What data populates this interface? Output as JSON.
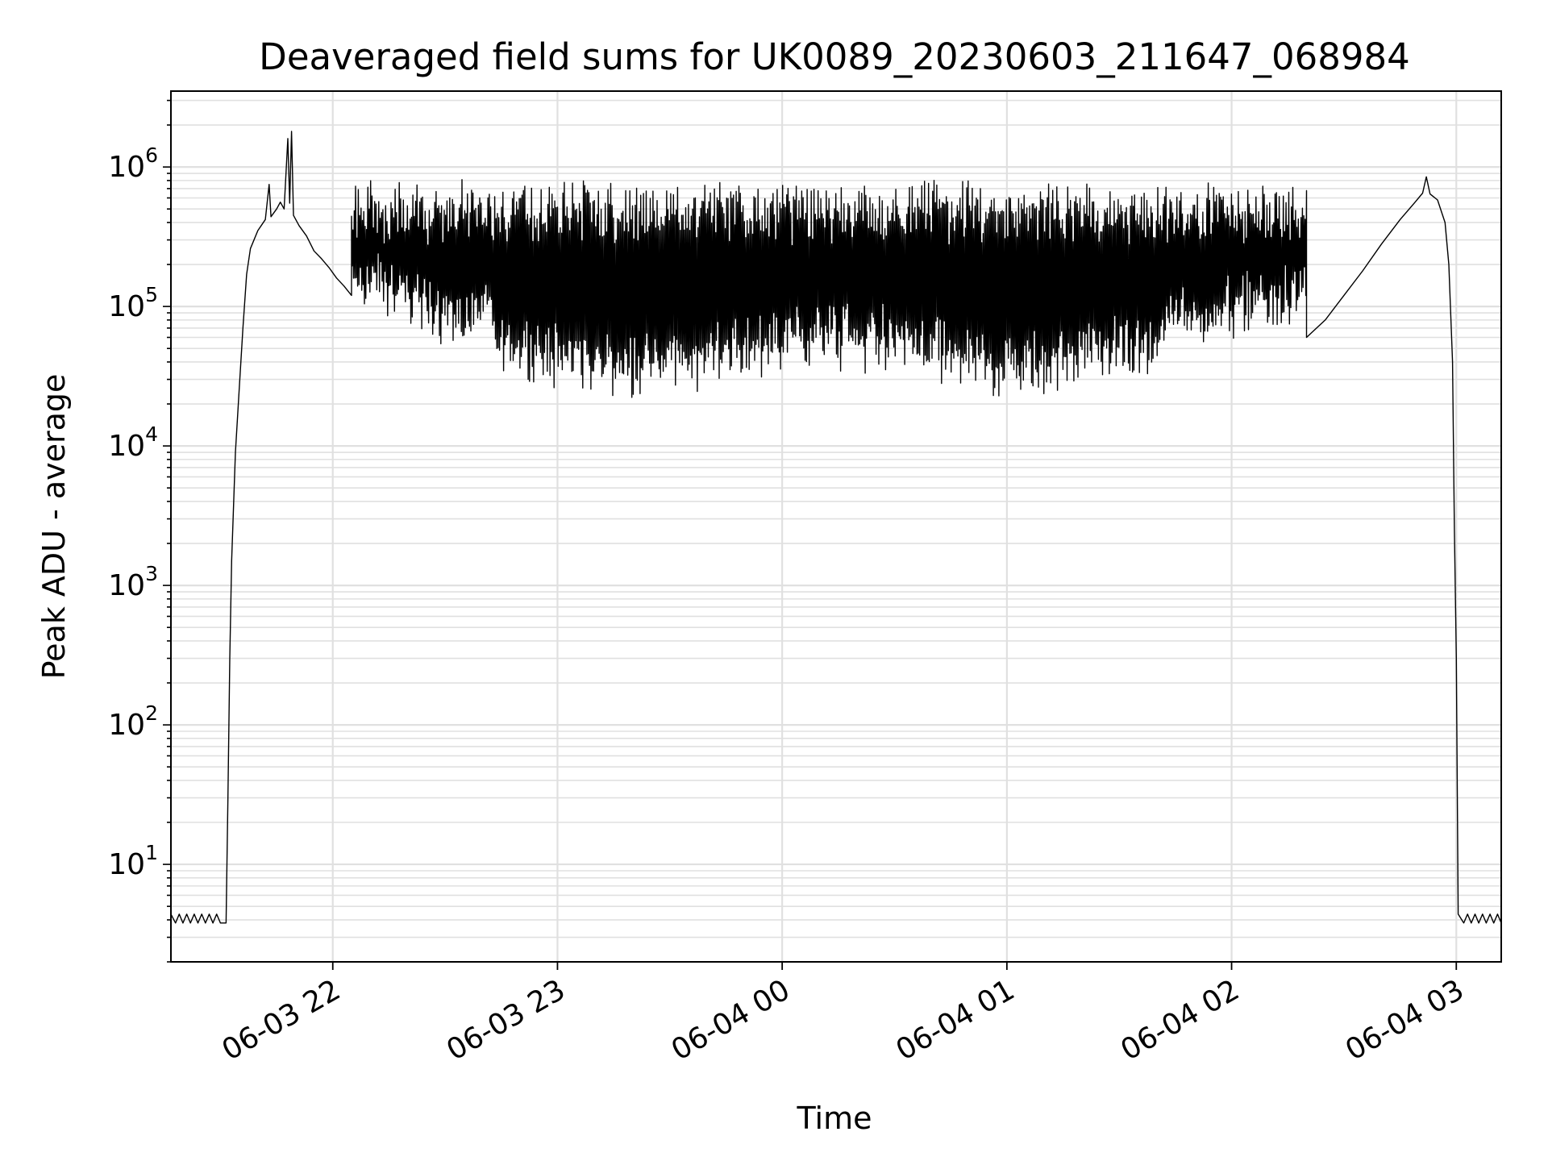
{
  "chart_data": {
    "type": "line",
    "title": "Deaveraged field sums for UK0089_20230603_211647_068984",
    "xlabel": "Time",
    "ylabel": "Peak ADU - average",
    "yscale": "log",
    "xlim": [
      "2023-06-03 21:16:47",
      "2023-06-04 03:12:00"
    ],
    "ylim": [
      2,
      3500000
    ],
    "grid": true,
    "line_color": "#000000",
    "grid_color": "#e0e0e0",
    "x_ticks": [
      {
        "t": "2023-06-03 22:00",
        "label": "06-03 22"
      },
      {
        "t": "2023-06-03 23:00",
        "label": "06-03 23"
      },
      {
        "t": "2023-06-04 00:00",
        "label": "06-04 00"
      },
      {
        "t": "2023-06-04 01:00",
        "label": "06-04 01"
      },
      {
        "t": "2023-06-04 02:00",
        "label": "06-04 02"
      },
      {
        "t": "2023-06-04 03:00",
        "label": "06-04 03"
      }
    ],
    "y_ticks": [
      {
        "value": 10,
        "base": "10",
        "exp": "1"
      },
      {
        "value": 100,
        "base": "10",
        "exp": "2"
      },
      {
        "value": 1000,
        "base": "10",
        "exp": "3"
      },
      {
        "value": 10000,
        "base": "10",
        "exp": "4"
      },
      {
        "value": 100000,
        "base": "10",
        "exp": "5"
      },
      {
        "value": 1000000,
        "base": "10",
        "exp": "6"
      }
    ],
    "series": [
      {
        "points": [
          [
            "2023-06-03 21:16:47",
            4.4
          ],
          [
            "2023-06-03 21:18:00",
            3.8
          ],
          [
            "2023-06-03 21:19:00",
            4.4
          ],
          [
            "2023-06-03 21:20:00",
            3.8
          ],
          [
            "2023-06-03 21:21:00",
            4.4
          ],
          [
            "2023-06-03 21:22:00",
            3.8
          ],
          [
            "2023-06-03 21:23:00",
            4.4
          ],
          [
            "2023-06-03 21:24:00",
            3.8
          ],
          [
            "2023-06-03 21:25:00",
            4.4
          ],
          [
            "2023-06-03 21:26:00",
            3.8
          ],
          [
            "2023-06-03 21:27:00",
            4.4
          ],
          [
            "2023-06-03 21:28:00",
            3.8
          ],
          [
            "2023-06-03 21:29:00",
            4.4
          ],
          [
            "2023-06-03 21:30:00",
            3.8
          ],
          [
            "2023-06-03 21:31:30",
            3.8
          ],
          [
            "2023-06-03 21:32:00",
            30
          ],
          [
            "2023-06-03 21:32:30",
            300
          ],
          [
            "2023-06-03 21:33:00",
            1500
          ],
          [
            "2023-06-03 21:34:00",
            9000
          ],
          [
            "2023-06-03 21:35:00",
            25000
          ],
          [
            "2023-06-03 21:36:00",
            70000
          ],
          [
            "2023-06-03 21:37:00",
            170000
          ],
          [
            "2023-06-03 21:38:00",
            260000
          ],
          [
            "2023-06-03 21:40:00",
            350000
          ],
          [
            "2023-06-03 21:42:00",
            420000
          ],
          [
            "2023-06-03 21:43:00",
            750000
          ],
          [
            "2023-06-03 21:43:30",
            440000
          ],
          [
            "2023-06-03 21:45:00",
            500000
          ],
          [
            "2023-06-03 21:46:00",
            560000
          ],
          [
            "2023-06-03 21:47:00",
            500000
          ],
          [
            "2023-06-03 21:48:00",
            1600000
          ],
          [
            "2023-06-03 21:48:30",
            550000
          ],
          [
            "2023-06-03 21:49:00",
            1800000
          ],
          [
            "2023-06-03 21:49:30",
            450000
          ],
          [
            "2023-06-03 21:51:00",
            380000
          ],
          [
            "2023-06-03 21:53:00",
            320000
          ],
          [
            "2023-06-03 21:55:00",
            250000
          ],
          [
            "2023-06-03 21:57:00",
            220000
          ],
          [
            "2023-06-03 21:59:00",
            190000
          ],
          [
            "2023-06-03 22:01:00",
            160000
          ],
          [
            "2023-06-03 22:03:00",
            140000
          ],
          [
            "2023-06-03 22:05:00",
            120000
          ],
          [
            "2023-06-04 02:20:00",
            60000
          ],
          [
            "2023-06-04 02:25:00",
            80000
          ],
          [
            "2023-06-04 02:30:00",
            120000
          ],
          [
            "2023-06-04 02:35:00",
            180000
          ],
          [
            "2023-06-04 02:40:00",
            280000
          ],
          [
            "2023-06-04 02:45:00",
            420000
          ],
          [
            "2023-06-04 02:49:00",
            560000
          ],
          [
            "2023-06-04 02:51:00",
            650000
          ],
          [
            "2023-06-04 02:52:00",
            850000
          ],
          [
            "2023-06-04 02:53:00",
            640000
          ],
          [
            "2023-06-04 02:55:00",
            580000
          ],
          [
            "2023-06-04 02:57:00",
            400000
          ],
          [
            "2023-06-04 02:58:00",
            200000
          ],
          [
            "2023-06-04 02:59:00",
            40000
          ],
          [
            "2023-06-04 02:59:30",
            2500
          ],
          [
            "2023-06-04 03:00:00",
            300
          ],
          [
            "2023-06-04 03:00:30",
            4.4
          ],
          [
            "2023-06-04 03:02:00",
            3.8
          ],
          [
            "2023-06-04 03:03:00",
            4.4
          ],
          [
            "2023-06-04 03:04:00",
            3.8
          ],
          [
            "2023-06-04 03:05:00",
            4.4
          ],
          [
            "2023-06-04 03:06:00",
            3.8
          ],
          [
            "2023-06-04 03:07:00",
            4.4
          ],
          [
            "2023-06-04 03:08:00",
            3.8
          ],
          [
            "2023-06-04 03:09:00",
            4.4
          ],
          [
            "2023-06-04 03:10:00",
            3.8
          ],
          [
            "2023-06-04 03:11:00",
            4.4
          ],
          [
            "2023-06-04 03:12:00",
            3.8
          ]
        ],
        "oscillating_band": {
          "from": "2023-06-03 22:05:00",
          "to": "2023-06-04 02:20:00",
          "upper": 700000,
          "lower": 35000
        }
      }
    ]
  }
}
